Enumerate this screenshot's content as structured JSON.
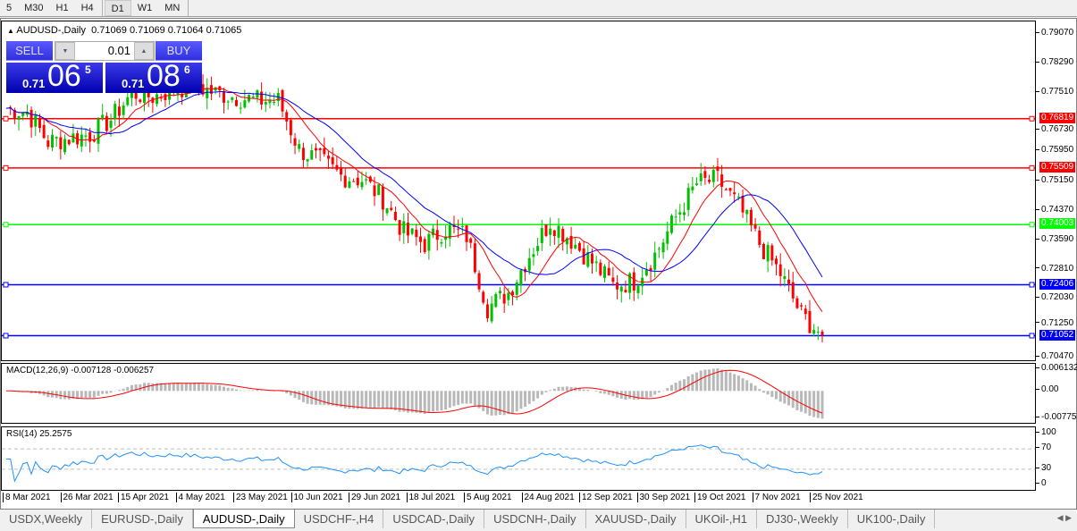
{
  "toolbar": {
    "timeframes": [
      "5",
      "M30",
      "H1",
      "H4",
      "D1",
      "W1",
      "MN"
    ],
    "selected": "D1"
  },
  "chart": {
    "title": "AUDUSD-,Daily",
    "ohlc": "0.71069 0.71069 0.71064 0.71065",
    "collapse_icon": "triangle-up-icon",
    "trade_panel": {
      "sell_label": "SELL",
      "buy_label": "BUY",
      "lot": "0.01",
      "sell_small": "0.71",
      "sell_big": "06",
      "sell_pip": "5",
      "buy_small": "0.71",
      "buy_big": "08",
      "buy_pip": "6"
    },
    "price_ticks": [
      "0.79070",
      "0.78290",
      "0.77510",
      "0.76730",
      "0.75950",
      "0.75150",
      "0.74370",
      "0.73590",
      "0.72810",
      "0.72030",
      "0.71250",
      "0.70470"
    ],
    "levels": [
      {
        "price": "0.76819",
        "color": "#ff0000"
      },
      {
        "price": "0.75509",
        "color": "#ff0000"
      },
      {
        "price": "0.74003",
        "color": "#00ff00"
      },
      {
        "price": "0.72406",
        "color": "#0000ff"
      },
      {
        "price": "0.71052",
        "color": "#0000ff"
      }
    ],
    "colors": {
      "bull": "#00c000",
      "bear": "#ff0000",
      "ma_fast": "#ff0000",
      "ma_slow": "#0000ff"
    }
  },
  "macd": {
    "title": "MACD(12,26,9) -0.007128 -0.006257",
    "ticks": [
      "0.006132",
      "0.00",
      "-0.00775"
    ]
  },
  "rsi": {
    "title": "RSI(14) 25.2575",
    "ticks": [
      "100",
      "70",
      "30",
      "0"
    ]
  },
  "dates": [
    "8 Mar 2021",
    "26 Mar 2021",
    "15 Apr 2021",
    "4 May 2021",
    "23 May 2021",
    "10 Jun 2021",
    "29 Jun 2021",
    "18 Jul 2021",
    "5 Aug 2021",
    "24 Aug 2021",
    "12 Sep 2021",
    "30 Sep 2021",
    "19 Oct 2021",
    "7 Nov 2021",
    "25 Nov 2021"
  ],
  "tabs": [
    "USDX,Weekly",
    "EURUSD-,Daily",
    "AUDUSD-,Daily",
    "USDCHF-,H4",
    "USDCAD-,Daily",
    "USDCNH-,Daily",
    "XAUUSD-,Daily",
    "UKOil-,H1",
    "DJ30-,Weekly",
    "UK100-,Daily"
  ],
  "active_tab": "AUDUSD-,Daily",
  "chart_data": {
    "type": "candlestick",
    "weekly_closes": [
      0.771,
      0.77,
      0.762,
      0.763,
      0.764,
      0.768,
      0.775,
      0.774,
      0.776,
      0.777,
      0.775,
      0.774,
      0.773,
      0.773,
      0.76,
      0.757,
      0.753,
      0.752,
      0.747,
      0.738,
      0.735,
      0.739,
      0.737,
      0.718,
      0.722,
      0.732,
      0.741,
      0.736,
      0.73,
      0.724,
      0.725,
      0.732,
      0.742,
      0.751,
      0.752,
      0.745,
      0.735,
      0.727,
      0.716,
      0.7107
    ],
    "ylim": [
      0.7047,
      0.7907
    ]
  }
}
